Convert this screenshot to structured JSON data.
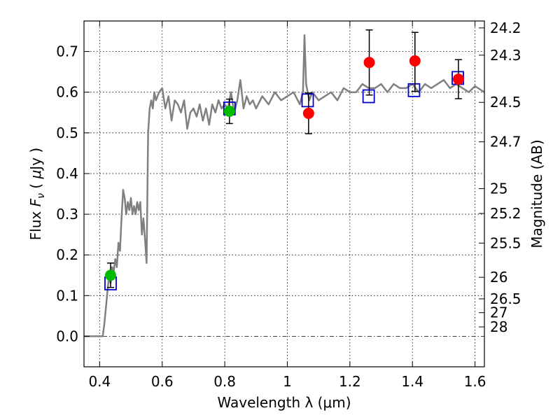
{
  "chart_data": {
    "type": "scatter",
    "xlabel": "Wavelength  λ (μm)",
    "ylabel": "Flux  F_ν  ( μJy )",
    "ylabel_parts": [
      "Flux  ",
      "F",
      "ν",
      "  ( ",
      "μ",
      "Jy )"
    ],
    "y2label": "Magnitude (AB)",
    "xlim": [
      0.35,
      1.63
    ],
    "ylim": [
      -0.075,
      0.775
    ],
    "grid": true,
    "x_ticks": [
      {
        "value": 0.4,
        "label": "0.4"
      },
      {
        "value": 0.6,
        "label": "0.6"
      },
      {
        "value": 0.8,
        "label": "0.8"
      },
      {
        "value": 1.0,
        "label": "1"
      },
      {
        "value": 1.2,
        "label": "1.2"
      },
      {
        "value": 1.4,
        "label": "1.4"
      },
      {
        "value": 1.6,
        "label": "1.6"
      }
    ],
    "y_ticks": [
      {
        "value": 0.0,
        "label": "0.0"
      },
      {
        "value": 0.1,
        "label": "0.1"
      },
      {
        "value": 0.2,
        "label": "0.2"
      },
      {
        "value": 0.3,
        "label": "0.3"
      },
      {
        "value": 0.4,
        "label": "0.4"
      },
      {
        "value": 0.5,
        "label": "0.5"
      },
      {
        "value": 0.6,
        "label": "0.6"
      },
      {
        "value": 0.7,
        "label": "0.7"
      }
    ],
    "y2_ticks": [
      {
        "flux": 0.758,
        "label": "24.2"
      },
      {
        "flux": 0.691,
        "label": "24.3"
      },
      {
        "flux": 0.575,
        "label": "24.5"
      },
      {
        "flux": 0.478,
        "label": "24.7"
      },
      {
        "flux": 0.363,
        "label": "25"
      },
      {
        "flux": 0.302,
        "label": "25.2"
      },
      {
        "flux": 0.229,
        "label": "25.5"
      },
      {
        "flux": 0.145,
        "label": "26"
      },
      {
        "flux": 0.092,
        "label": "26.5"
      },
      {
        "flux": 0.058,
        "label": "27"
      },
      {
        "flux": 0.023,
        "label": "28"
      }
    ],
    "model_spectrum": {
      "color": "#808080",
      "x": [
        0.35,
        0.37,
        0.39,
        0.41,
        0.415,
        0.42,
        0.425,
        0.43,
        0.435,
        0.44,
        0.445,
        0.45,
        0.455,
        0.46,
        0.465,
        0.47,
        0.475,
        0.48,
        0.485,
        0.49,
        0.495,
        0.5,
        0.505,
        0.51,
        0.515,
        0.52,
        0.525,
        0.53,
        0.535,
        0.54,
        0.545,
        0.55,
        0.555,
        0.56,
        0.565,
        0.57,
        0.575,
        0.58,
        0.59,
        0.6,
        0.61,
        0.62,
        0.63,
        0.64,
        0.65,
        0.66,
        0.67,
        0.68,
        0.69,
        0.7,
        0.71,
        0.72,
        0.73,
        0.74,
        0.75,
        0.76,
        0.77,
        0.78,
        0.79,
        0.8,
        0.81,
        0.82,
        0.83,
        0.84,
        0.85,
        0.86,
        0.87,
        0.88,
        0.89,
        0.9,
        0.92,
        0.94,
        0.96,
        0.98,
        1.0,
        1.02,
        1.04,
        1.05,
        1.055,
        1.06,
        1.07,
        1.08,
        1.1,
        1.12,
        1.14,
        1.16,
        1.18,
        1.2,
        1.22,
        1.24,
        1.26,
        1.28,
        1.3,
        1.32,
        1.34,
        1.36,
        1.38,
        1.4,
        1.42,
        1.44,
        1.46,
        1.48,
        1.5,
        1.52,
        1.54,
        1.56,
        1.58,
        1.6,
        1.63
      ],
      "y": [
        0.0,
        0.0,
        0.0,
        0.0,
        0.03,
        0.07,
        0.11,
        0.15,
        0.13,
        0.17,
        0.16,
        0.19,
        0.17,
        0.23,
        0.21,
        0.29,
        0.36,
        0.34,
        0.3,
        0.33,
        0.31,
        0.34,
        0.3,
        0.32,
        0.3,
        0.33,
        0.31,
        0.33,
        0.25,
        0.29,
        0.24,
        0.18,
        0.5,
        0.56,
        0.58,
        0.56,
        0.6,
        0.58,
        0.6,
        0.61,
        0.56,
        0.59,
        0.53,
        0.58,
        0.57,
        0.55,
        0.58,
        0.51,
        0.55,
        0.56,
        0.54,
        0.57,
        0.53,
        0.56,
        0.52,
        0.57,
        0.55,
        0.58,
        0.56,
        0.57,
        0.56,
        0.6,
        0.55,
        0.58,
        0.63,
        0.56,
        0.59,
        0.57,
        0.58,
        0.56,
        0.59,
        0.57,
        0.6,
        0.58,
        0.59,
        0.6,
        0.57,
        0.6,
        0.74,
        0.62,
        0.58,
        0.6,
        0.58,
        0.59,
        0.6,
        0.58,
        0.61,
        0.6,
        0.6,
        0.62,
        0.61,
        0.61,
        0.62,
        0.6,
        0.62,
        0.61,
        0.61,
        0.62,
        0.6,
        0.62,
        0.61,
        0.62,
        0.63,
        0.61,
        0.62,
        0.61,
        0.6,
        0.615,
        0.6
      ]
    },
    "boxes": {
      "color": "#0000cc",
      "x": [
        0.435,
        0.815,
        1.065,
        1.26,
        1.405,
        1.545
      ],
      "y": [
        0.13,
        0.56,
        0.58,
        0.59,
        0.605,
        0.635
      ]
    },
    "green_points": {
      "color": "#00bb00",
      "x": [
        0.435,
        0.815
      ],
      "y": [
        0.15,
        0.553
      ],
      "err_low": [
        0.03,
        0.03
      ],
      "err_high": [
        0.03,
        0.03
      ]
    },
    "red_points": {
      "color": "#ff0000",
      "x": [
        1.068,
        1.262,
        1.408,
        1.547
      ],
      "y": [
        0.548,
        0.673,
        0.677,
        0.632
      ],
      "err_low": [
        0.05,
        0.08,
        0.075,
        0.048
      ],
      "err_high": [
        0.05,
        0.08,
        0.07,
        0.048
      ]
    }
  }
}
